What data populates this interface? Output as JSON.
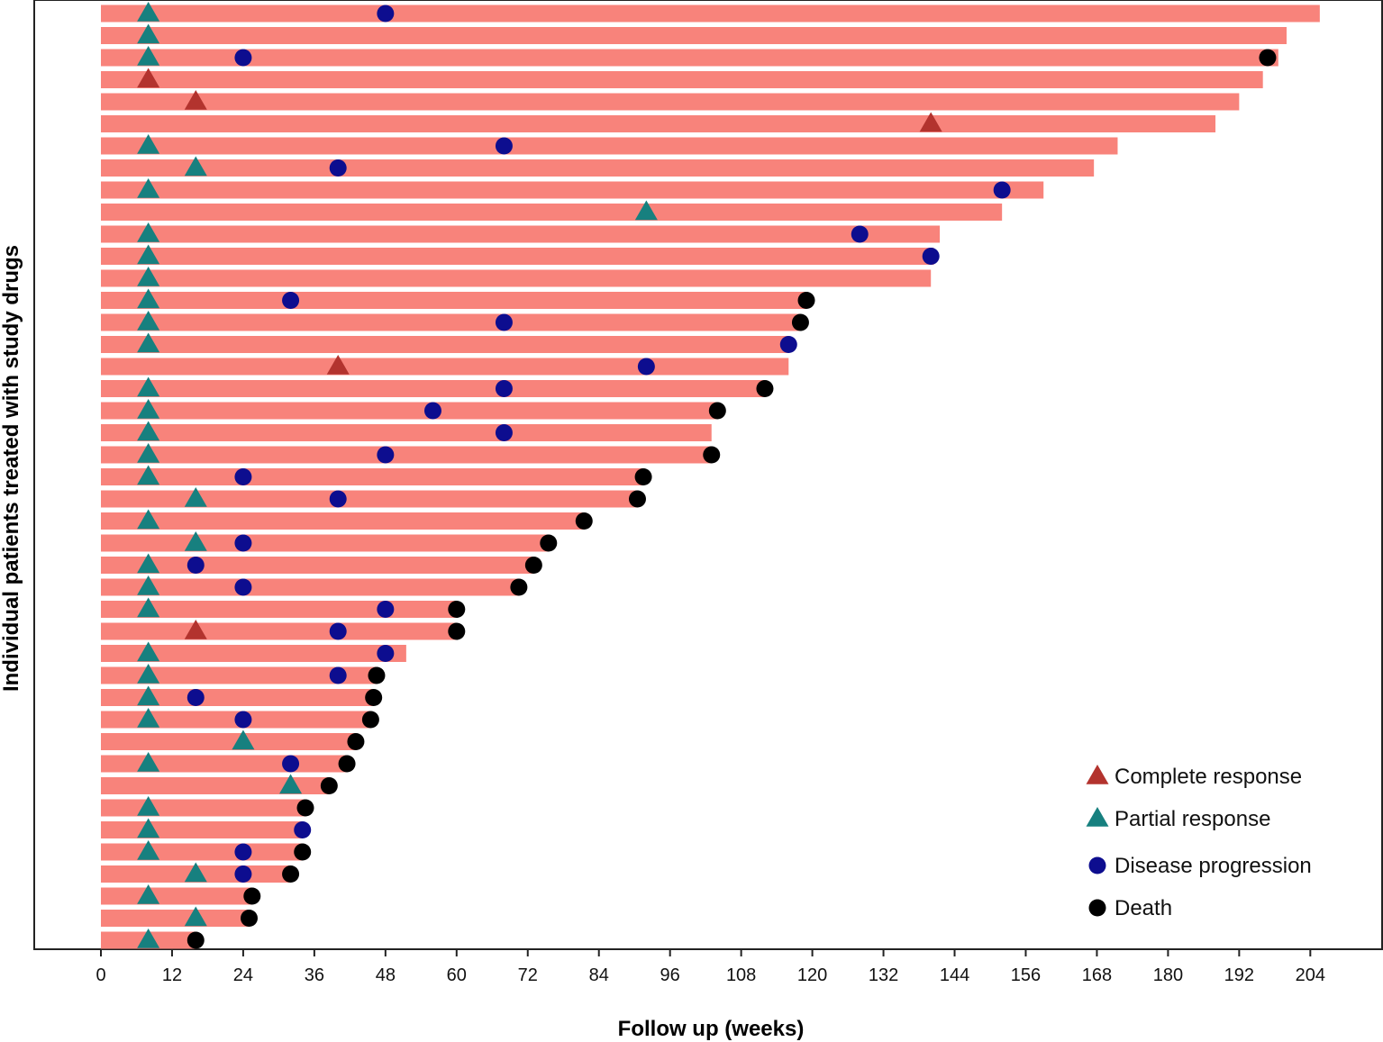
{
  "chart_data": {
    "type": "swimmer",
    "xlabel": "Follow up (weeks)",
    "ylabel": "Individual patients treated with study drugs",
    "xlim": [
      0,
      210
    ],
    "xticks": [
      0,
      12,
      24,
      36,
      48,
      60,
      72,
      84,
      96,
      108,
      120,
      132,
      144,
      156,
      168,
      180,
      192,
      204
    ],
    "legend_position": "bottom-right",
    "colors": {
      "bar": "#f8837b",
      "complete_response": "#b3332e",
      "partial_response": "#17807f",
      "disease_progression": "#0d0d8f",
      "death": "#000000"
    },
    "legend": [
      {
        "key": "complete_response",
        "label": "Complete response",
        "shape": "triangle"
      },
      {
        "key": "partial_response",
        "label": "Partial response",
        "shape": "triangle"
      },
      {
        "key": "disease_progression",
        "label": "Disease progression",
        "shape": "circle"
      },
      {
        "key": "death",
        "label": "Death",
        "shape": "circle"
      }
    ],
    "patients": [
      {
        "duration": 205.6,
        "partial_response": 8,
        "disease_progression": 48
      },
      {
        "duration": 200,
        "partial_response": 8
      },
      {
        "duration": 198.6,
        "partial_response": 8,
        "disease_progression": 24,
        "death": 196.8
      },
      {
        "duration": 196,
        "complete_response": 8
      },
      {
        "duration": 192,
        "complete_response": 16
      },
      {
        "duration": 188,
        "complete_response": 140
      },
      {
        "duration": 171.5,
        "partial_response": 8,
        "disease_progression": 68
      },
      {
        "duration": 167.5,
        "partial_response": 16,
        "disease_progression": 40
      },
      {
        "duration": 159,
        "partial_response": 8,
        "disease_progression": 152
      },
      {
        "duration": 152,
        "partial_response": 92
      },
      {
        "duration": 141.5,
        "partial_response": 8,
        "disease_progression": 128
      },
      {
        "duration": 140.5,
        "partial_response": 8,
        "disease_progression": 140
      },
      {
        "duration": 140,
        "partial_response": 8
      },
      {
        "duration": 119,
        "partial_response": 8,
        "disease_progression": 32,
        "death": 119
      },
      {
        "duration": 118,
        "partial_response": 8,
        "disease_progression": 68,
        "death": 118
      },
      {
        "duration": 116,
        "partial_response": 8,
        "disease_progression": 116
      },
      {
        "duration": 116,
        "complete_response": 40,
        "disease_progression": 92
      },
      {
        "duration": 112,
        "partial_response": 8,
        "disease_progression": 68,
        "death": 112
      },
      {
        "duration": 104,
        "partial_response": 8,
        "disease_progression": 56,
        "death": 104
      },
      {
        "duration": 103,
        "partial_response": 8,
        "disease_progression": 68
      },
      {
        "duration": 103,
        "partial_response": 8,
        "disease_progression": 48,
        "death": 103
      },
      {
        "duration": 91.5,
        "partial_response": 8,
        "disease_progression": 24,
        "death": 91.5
      },
      {
        "duration": 90.5,
        "partial_response": 16,
        "disease_progression": 40,
        "death": 90.5
      },
      {
        "duration": 81.5,
        "partial_response": 8,
        "death": 81.5
      },
      {
        "duration": 75.5,
        "partial_response": 16,
        "disease_progression": 24,
        "death": 75.5
      },
      {
        "duration": 73,
        "partial_response": 8,
        "disease_progression": 16,
        "death": 73
      },
      {
        "duration": 70.5,
        "partial_response": 8,
        "disease_progression": 24,
        "death": 70.5
      },
      {
        "duration": 60,
        "partial_response": 8,
        "disease_progression": 48,
        "death": 60
      },
      {
        "duration": 60,
        "complete_response": 16,
        "disease_progression": 40,
        "death": 60
      },
      {
        "duration": 51.5,
        "partial_response": 8,
        "disease_progression": 48
      },
      {
        "duration": 46.5,
        "partial_response": 8,
        "disease_progression": 40,
        "death": 46.5
      },
      {
        "duration": 46,
        "partial_response": 8,
        "disease_progression": 16,
        "death": 46
      },
      {
        "duration": 45.5,
        "partial_response": 8,
        "disease_progression": 24,
        "death": 45.5
      },
      {
        "duration": 43,
        "partial_response": 24,
        "death": 43
      },
      {
        "duration": 41.5,
        "partial_response": 8,
        "disease_progression": 32,
        "death": 41.5
      },
      {
        "duration": 38.5,
        "partial_response": 32,
        "death": 38.5
      },
      {
        "duration": 34.5,
        "partial_response": 8,
        "death": 34.5
      },
      {
        "duration": 34,
        "partial_response": 8,
        "disease_progression": 34
      },
      {
        "duration": 34,
        "partial_response": 8,
        "disease_progression": 24,
        "death": 34
      },
      {
        "duration": 32,
        "partial_response": 16,
        "disease_progression": 24,
        "death": 32
      },
      {
        "duration": 25.5,
        "partial_response": 8,
        "death": 25.5
      },
      {
        "duration": 25,
        "partial_response": 16,
        "death": 25
      },
      {
        "duration": 16,
        "partial_response": 8,
        "death": 16
      }
    ]
  }
}
